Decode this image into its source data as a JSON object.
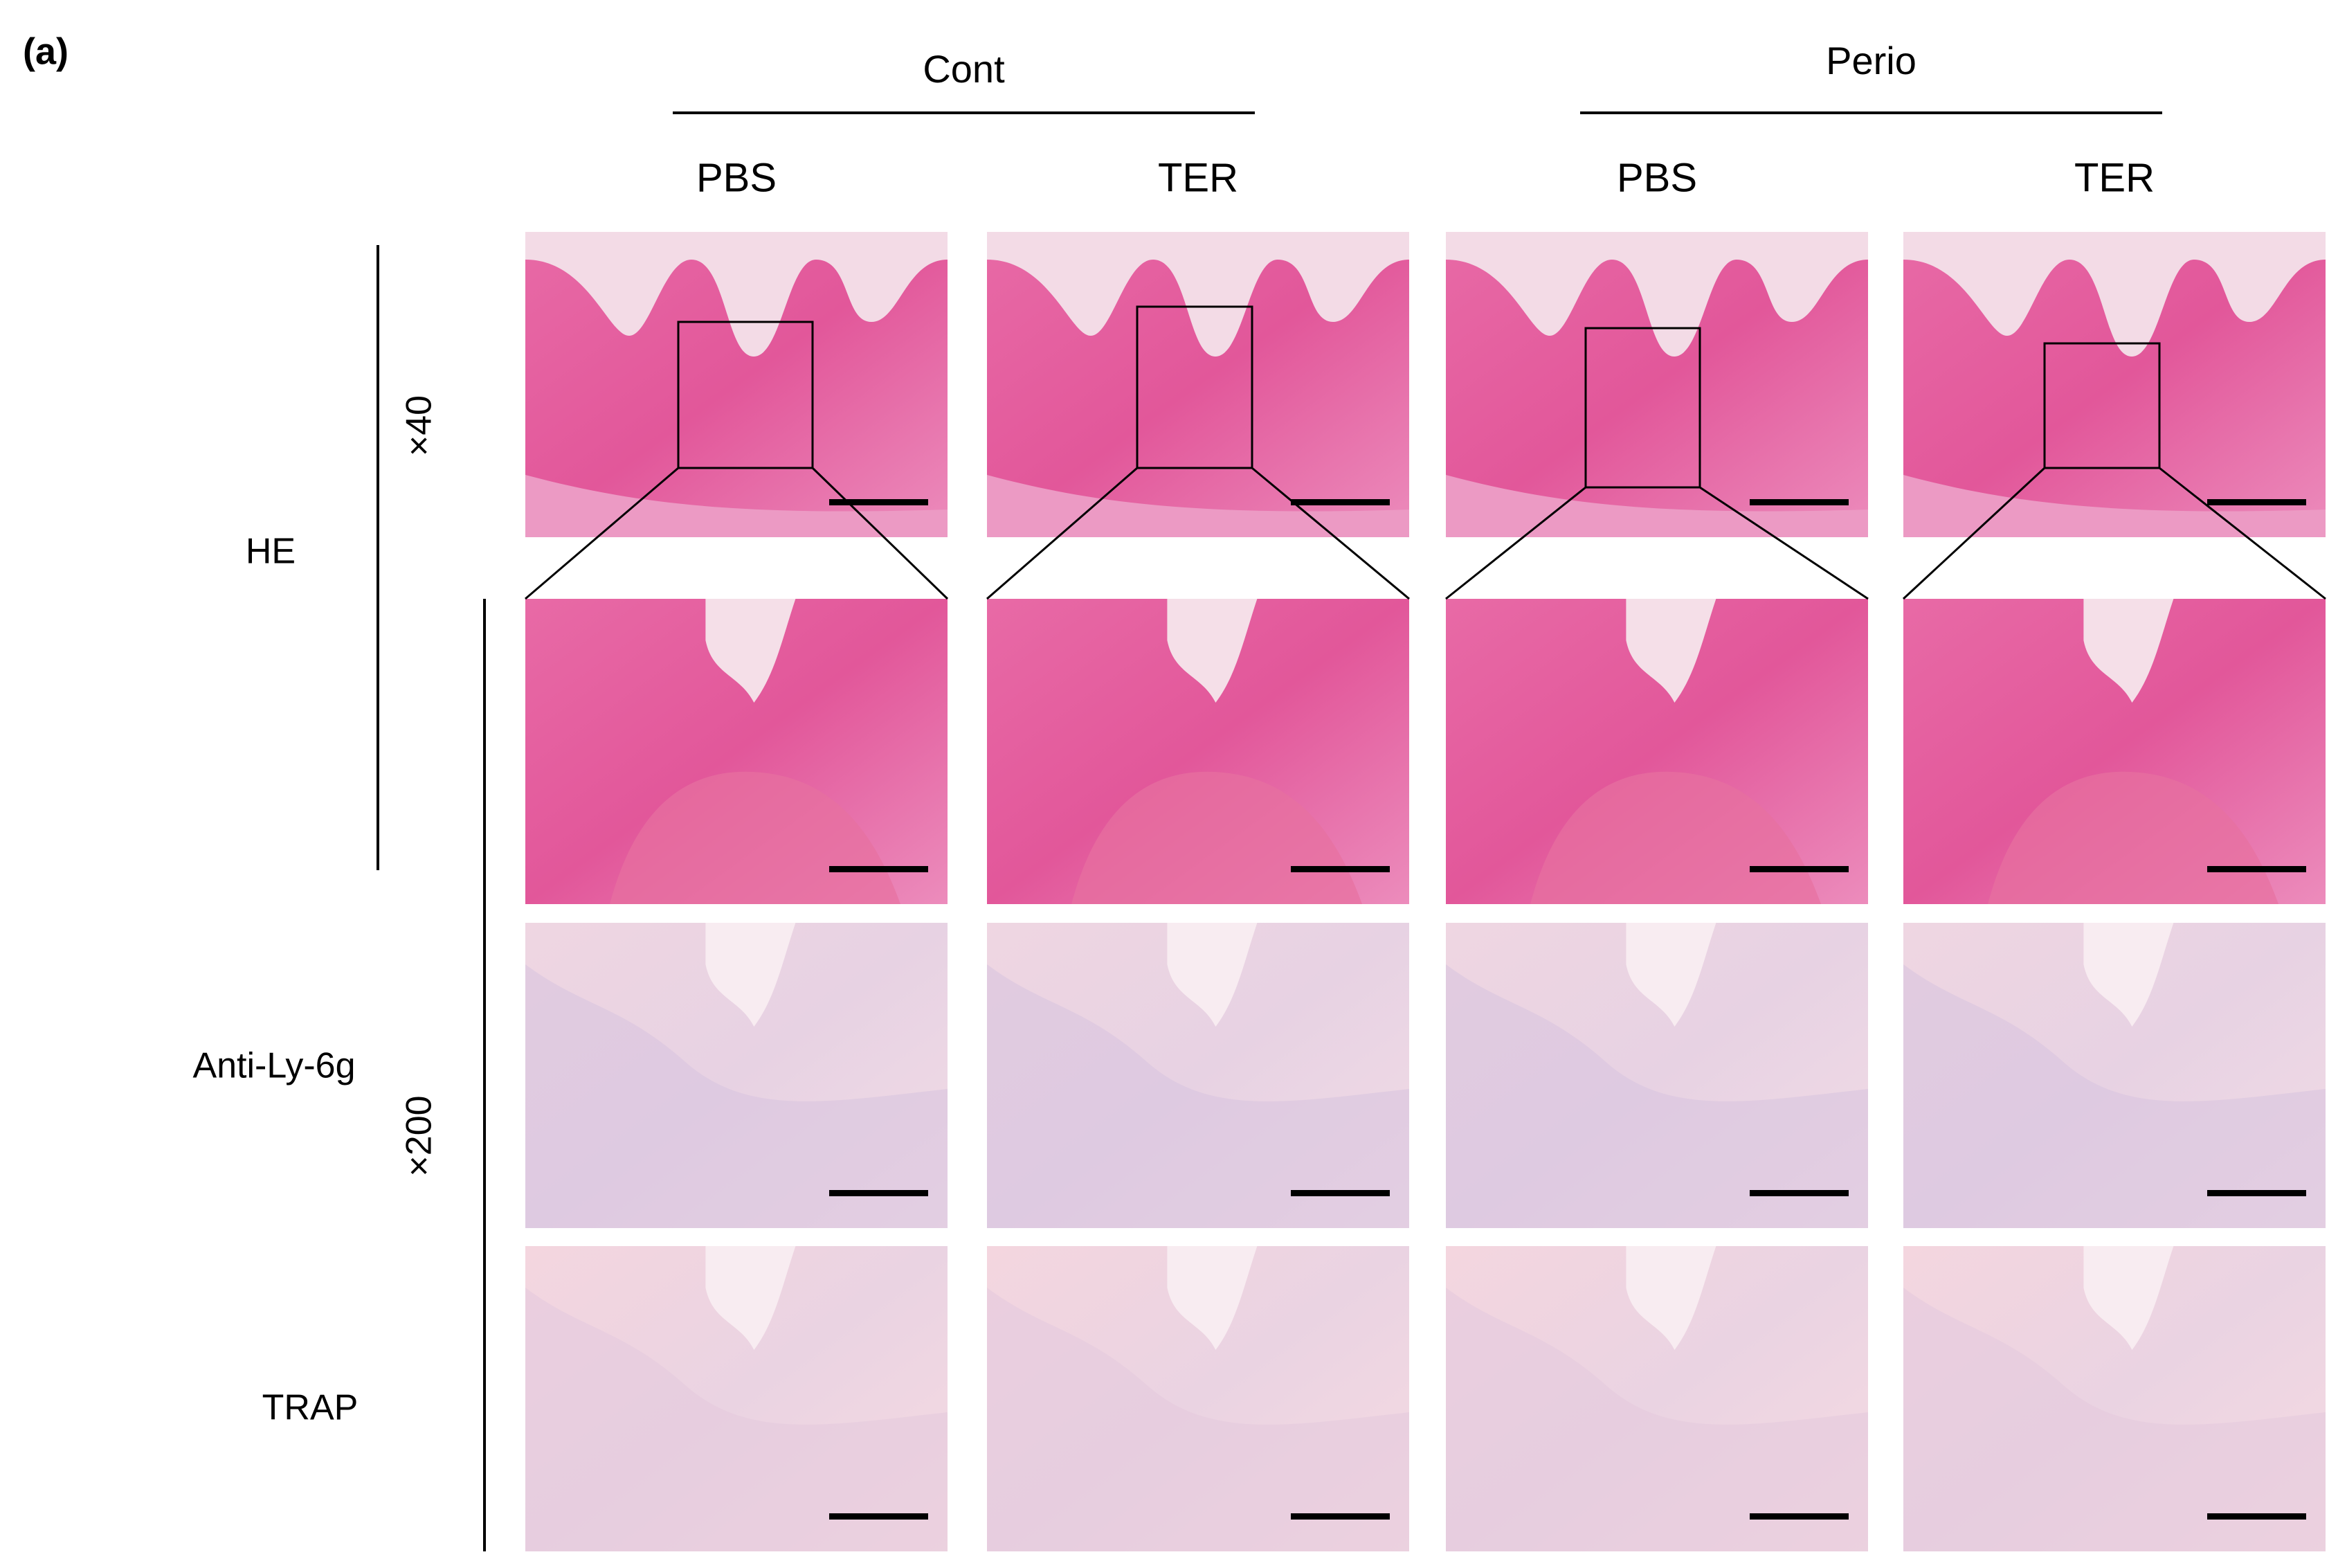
{
  "panel_label": "(a)",
  "groups": [
    {
      "label": "Cont",
      "columns": [
        "PBS",
        "TER"
      ]
    },
    {
      "label": "Perio",
      "columns": [
        "PBS",
        "TER"
      ]
    }
  ],
  "stains": [
    "HE",
    "Anti-Ly-6g",
    "TRAP"
  ],
  "magnifications": [
    "×40",
    "×200"
  ]
}
